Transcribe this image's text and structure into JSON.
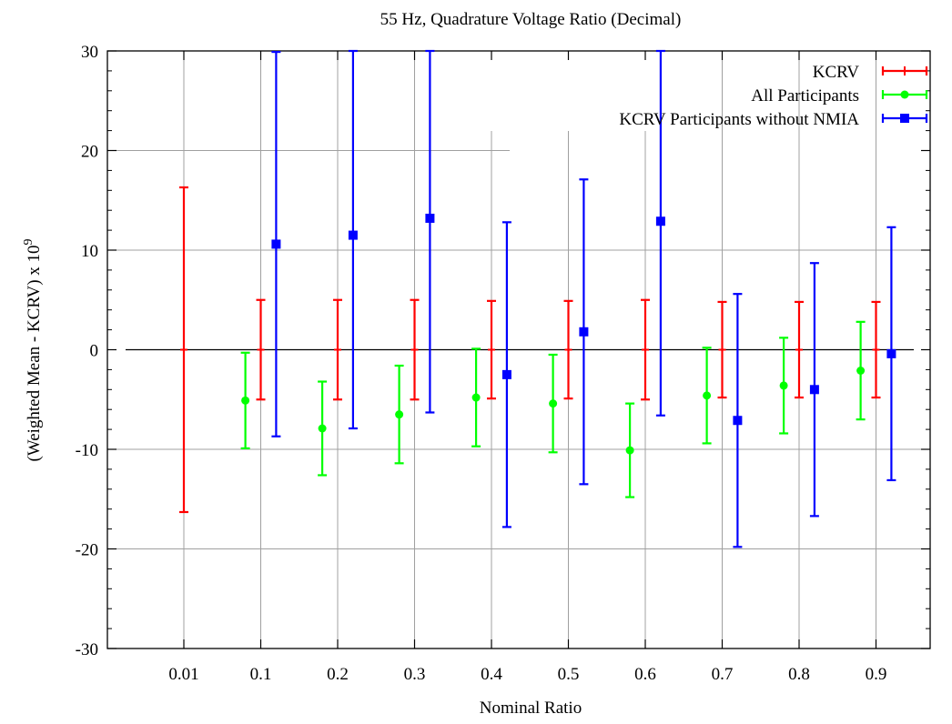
{
  "chart_data": {
    "type": "scatter",
    "title": "55 Hz, Quadrature Voltage Ratio (Decimal)",
    "xlabel": "Nominal Ratio",
    "ylabel_main": "(Weighted Mean - KCRV) x 10",
    "ylabel_exp": "9",
    "categories": [
      "0.01",
      "0.1",
      "0.2",
      "0.3",
      "0.4",
      "0.5",
      "0.6",
      "0.7",
      "0.8",
      "0.9"
    ],
    "ylim": [
      -30,
      30
    ],
    "yticks": [
      -30,
      -20,
      -10,
      0,
      10,
      20,
      30
    ],
    "grid": true,
    "legend_position": "top-right",
    "series": [
      {
        "name": "KCRV",
        "color": "#ff0000",
        "marker": "none",
        "points": [
          {
            "category": "0.01",
            "offset": 0,
            "y": 0,
            "err": 16.3
          },
          {
            "category": "0.1",
            "offset": 0,
            "y": 0,
            "err": 5.0
          },
          {
            "category": "0.2",
            "offset": 0,
            "y": 0,
            "err": 5.0
          },
          {
            "category": "0.3",
            "offset": 0,
            "y": 0,
            "err": 5.0
          },
          {
            "category": "0.4",
            "offset": 0,
            "y": 0,
            "err": 4.9
          },
          {
            "category": "0.5",
            "offset": 0,
            "y": 0,
            "err": 4.9
          },
          {
            "category": "0.6",
            "offset": 0,
            "y": 0,
            "err": 5.0
          },
          {
            "category": "0.7",
            "offset": 0,
            "y": 0,
            "err": 4.8
          },
          {
            "category": "0.8",
            "offset": 0,
            "y": 0,
            "err": 4.8
          },
          {
            "category": "0.9",
            "offset": 0,
            "y": 0,
            "err": 4.8
          }
        ]
      },
      {
        "name": "All Participants",
        "color": "#00ff00",
        "marker": "circle",
        "points": [
          {
            "category": "0.1",
            "offset": -0.2,
            "y": -5.1,
            "err": 4.8
          },
          {
            "category": "0.2",
            "offset": -0.2,
            "y": -7.9,
            "err": 4.7
          },
          {
            "category": "0.3",
            "offset": -0.2,
            "y": -6.5,
            "err": 4.9
          },
          {
            "category": "0.4",
            "offset": -0.2,
            "y": -4.8,
            "err": 4.9
          },
          {
            "category": "0.5",
            "offset": -0.2,
            "y": -5.4,
            "err": 4.9
          },
          {
            "category": "0.6",
            "offset": -0.2,
            "y": -10.1,
            "err": 4.7
          },
          {
            "category": "0.7",
            "offset": -0.2,
            "y": -4.6,
            "err": 4.8
          },
          {
            "category": "0.8",
            "offset": -0.2,
            "y": -3.6,
            "err": 4.8
          },
          {
            "category": "0.9",
            "offset": -0.2,
            "y": -2.1,
            "err": 4.9
          }
        ]
      },
      {
        "name": "KCRV Participants without NMIA",
        "color": "#0000ff",
        "marker": "square",
        "points": [
          {
            "category": "0.1",
            "offset": 0.2,
            "y": 10.6,
            "err": 19.3,
            "clip_top": true
          },
          {
            "category": "0.2",
            "offset": 0.2,
            "y": 11.5,
            "err": 19.4,
            "clip_top": true
          },
          {
            "category": "0.3",
            "offset": 0.2,
            "y": 13.2,
            "err": 19.5,
            "clip_top": true
          },
          {
            "category": "0.4",
            "offset": 0.2,
            "y": -2.5,
            "err": 15.3
          },
          {
            "category": "0.5",
            "offset": 0.2,
            "y": 1.8,
            "err": 15.3
          },
          {
            "category": "0.6",
            "offset": 0.2,
            "y": 12.9,
            "err": 19.5,
            "clip_top": true
          },
          {
            "category": "0.7",
            "offset": 0.2,
            "y": -7.1,
            "err": 12.7
          },
          {
            "category": "0.8",
            "offset": 0.2,
            "y": -4.0,
            "err": 12.7
          },
          {
            "category": "0.9",
            "offset": 0.2,
            "y": -0.4,
            "err": 12.7
          }
        ]
      }
    ]
  }
}
